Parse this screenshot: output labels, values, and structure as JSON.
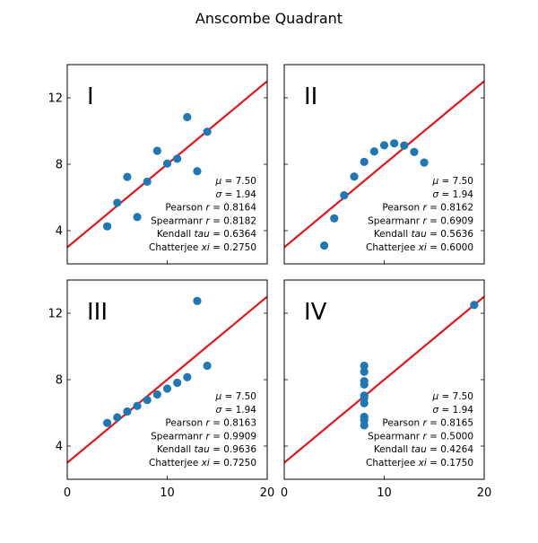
{
  "title": "Anscombe Quadrant",
  "colors": {
    "points": "#1f77b4",
    "fit_line": "#e8141c",
    "axes": "#000000"
  },
  "chart_data": [
    {
      "type": "scatter",
      "panel_label": "I",
      "xlim": [
        0,
        20
      ],
      "ylim": [
        2,
        14
      ],
      "x_ticks": [
        0,
        10,
        20
      ],
      "y_ticks": [
        4,
        8,
        12
      ],
      "x_ticklabels_visible": false,
      "y_ticklabels_visible": true,
      "points": [
        [
          10,
          8.04
        ],
        [
          8,
          6.95
        ],
        [
          13,
          7.58
        ],
        [
          9,
          8.81
        ],
        [
          11,
          8.33
        ],
        [
          14,
          9.96
        ],
        [
          6,
          7.24
        ],
        [
          4,
          4.26
        ],
        [
          12,
          10.84
        ],
        [
          7,
          4.82
        ],
        [
          5,
          5.68
        ]
      ],
      "fit_line": {
        "intercept": 3,
        "slope": 0.5
      },
      "stats": [
        "μ = 7.50",
        "σ = 1.94",
        "Pearson r = 0.8164",
        "Spearmanr r = 0.8182",
        "Kendall tau = 0.6364",
        "Chatterjee xi = 0.2750"
      ]
    },
    {
      "type": "scatter",
      "panel_label": "II",
      "xlim": [
        0,
        20
      ],
      "ylim": [
        2,
        14
      ],
      "x_ticks": [
        0,
        10,
        20
      ],
      "y_ticks": [
        4,
        8,
        12
      ],
      "x_ticklabels_visible": false,
      "y_ticklabels_visible": false,
      "points": [
        [
          10,
          9.14
        ],
        [
          8,
          8.14
        ],
        [
          13,
          8.74
        ],
        [
          9,
          8.77
        ],
        [
          11,
          9.26
        ],
        [
          14,
          8.1
        ],
        [
          6,
          6.13
        ],
        [
          4,
          3.1
        ],
        [
          12,
          9.13
        ],
        [
          7,
          7.26
        ],
        [
          5,
          4.74
        ]
      ],
      "fit_line": {
        "intercept": 3,
        "slope": 0.5
      },
      "stats": [
        "μ = 7.50",
        "σ = 1.94",
        "Pearson r = 0.8162",
        "Spearmanr r = 0.6909",
        "Kendall tau = 0.5636",
        "Chatterjee xi = 0.6000"
      ]
    },
    {
      "type": "scatter",
      "panel_label": "III",
      "xlim": [
        0,
        20
      ],
      "ylim": [
        2,
        14
      ],
      "x_ticks": [
        0,
        10,
        20
      ],
      "y_ticks": [
        4,
        8,
        12
      ],
      "x_ticklabels_visible": true,
      "y_ticklabels_visible": true,
      "points": [
        [
          10,
          7.46
        ],
        [
          8,
          6.77
        ],
        [
          13,
          12.74
        ],
        [
          9,
          7.11
        ],
        [
          11,
          7.81
        ],
        [
          14,
          8.84
        ],
        [
          6,
          6.08
        ],
        [
          4,
          5.39
        ],
        [
          12,
          8.15
        ],
        [
          7,
          6.42
        ],
        [
          5,
          5.73
        ]
      ],
      "fit_line": {
        "intercept": 3,
        "slope": 0.5
      },
      "stats": [
        "μ = 7.50",
        "σ = 1.94",
        "Pearson r = 0.8163",
        "Spearmanr r = 0.9909",
        "Kendall tau = 0.9636",
        "Chatterjee xi = 0.7250"
      ]
    },
    {
      "type": "scatter",
      "panel_label": "IV",
      "xlim": [
        0,
        20
      ],
      "ylim": [
        2,
        14
      ],
      "x_ticks": [
        0,
        10,
        20
      ],
      "y_ticks": [
        4,
        8,
        12
      ],
      "x_ticklabels_visible": true,
      "y_ticklabels_visible": false,
      "points": [
        [
          8,
          6.58
        ],
        [
          8,
          5.76
        ],
        [
          8,
          7.71
        ],
        [
          8,
          8.84
        ],
        [
          8,
          8.47
        ],
        [
          8,
          7.04
        ],
        [
          8,
          5.25
        ],
        [
          19,
          12.5
        ],
        [
          8,
          5.56
        ],
        [
          8,
          7.91
        ],
        [
          8,
          6.89
        ]
      ],
      "fit_line": {
        "intercept": 3,
        "slope": 0.5
      },
      "stats": [
        "μ = 7.50",
        "σ = 1.94",
        "Pearson r = 0.8165",
        "Spearmanr r = 0.5000",
        "Kendall tau = 0.4264",
        "Chatterjee xi = 0.1750"
      ]
    }
  ]
}
